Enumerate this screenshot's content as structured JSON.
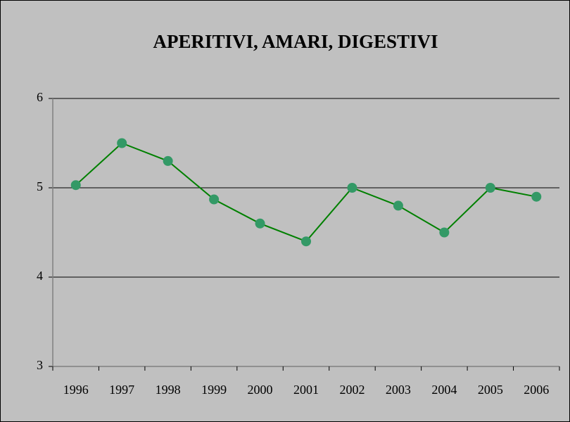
{
  "chart_data": {
    "type": "line",
    "title": "APERITIVI, AMARI, DIGESTIVI",
    "categories": [
      "1996",
      "1997",
      "1998",
      "1999",
      "2000",
      "2001",
      "2002",
      "2003",
      "2004",
      "2005",
      "2006"
    ],
    "series": [
      {
        "name": "APERITIVI, AMARI, DIGESTIVI",
        "color": "#008000",
        "marker_color": "#339966",
        "values": [
          5.03,
          5.5,
          5.3,
          4.87,
          4.6,
          4.4,
          5.0,
          4.8,
          4.5,
          5.0,
          4.9
        ]
      }
    ],
    "ylim": [
      3,
      6
    ],
    "yticks": [
      3,
      4,
      5,
      6
    ],
    "grid": true,
    "legend": false
  }
}
